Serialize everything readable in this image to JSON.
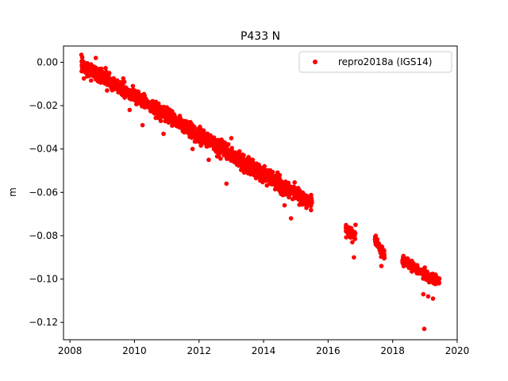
{
  "chart_data": {
    "type": "scatter",
    "title": "P433 N",
    "xlabel": "",
    "ylabel": "m",
    "xlim": [
      2007.8,
      2020.0
    ],
    "ylim": [
      -0.128,
      0.0075
    ],
    "x_ticks": [
      2008,
      2010,
      2012,
      2014,
      2016,
      2018,
      2020
    ],
    "x_tick_labels": [
      "2008",
      "2010",
      "2012",
      "2014",
      "2016",
      "2018",
      "2020"
    ],
    "y_ticks": [
      0.0,
      -0.02,
      -0.04,
      -0.06,
      -0.08,
      -0.1,
      -0.12
    ],
    "y_tick_labels": [
      "0.00",
      "−0.02",
      "−0.04",
      "−0.06",
      "−0.08",
      "−0.10",
      "−0.12"
    ],
    "grid": false,
    "legend_position": "top-right",
    "series": [
      {
        "name": "repro2018a (IGS14)",
        "color": "#ff0000",
        "marker": "circle",
        "segments": [
          {
            "x_start": 2008.35,
            "x_end": 2015.5,
            "y_start": -0.001,
            "y_end": -0.065,
            "spread": 0.003
          },
          {
            "x_start": 2016.55,
            "x_end": 2016.85,
            "y_start": -0.077,
            "y_end": -0.08,
            "spread": 0.002
          },
          {
            "x_start": 2017.45,
            "x_end": 2017.75,
            "y_start": -0.082,
            "y_end": -0.089,
            "spread": 0.002
          },
          {
            "x_start": 2018.3,
            "x_end": 2019.45,
            "y_start": -0.091,
            "y_end": -0.102,
            "spread": 0.002
          }
        ],
        "outliers": [
          {
            "x": 2008.8,
            "y": 0.002
          },
          {
            "x": 2009.15,
            "y": -0.013
          },
          {
            "x": 2009.85,
            "y": -0.022
          },
          {
            "x": 2010.25,
            "y": -0.029
          },
          {
            "x": 2010.9,
            "y": -0.033
          },
          {
            "x": 2011.8,
            "y": -0.04
          },
          {
            "x": 2012.3,
            "y": -0.045
          },
          {
            "x": 2012.85,
            "y": -0.056
          },
          {
            "x": 2013.0,
            "y": -0.035
          },
          {
            "x": 2013.7,
            "y": -0.052
          },
          {
            "x": 2014.65,
            "y": -0.066
          },
          {
            "x": 2014.85,
            "y": -0.072
          },
          {
            "x": 2016.75,
            "y": -0.083
          },
          {
            "x": 2016.85,
            "y": -0.075
          },
          {
            "x": 2016.8,
            "y": -0.09
          },
          {
            "x": 2017.65,
            "y": -0.094
          },
          {
            "x": 2018.95,
            "y": -0.107
          },
          {
            "x": 2019.1,
            "y": -0.108
          },
          {
            "x": 2019.25,
            "y": -0.109
          },
          {
            "x": 2018.98,
            "y": -0.123
          }
        ]
      }
    ]
  }
}
